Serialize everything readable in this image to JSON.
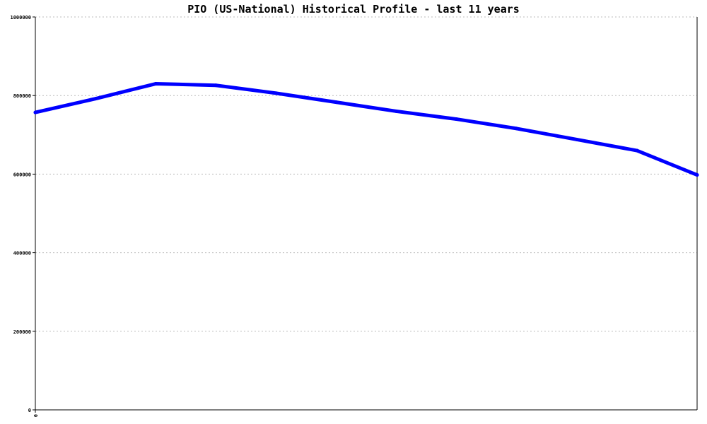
{
  "chart_data": {
    "type": "line",
    "title": "PIO (US-National) Historical Profile - last 11 years",
    "xlabel": "",
    "ylabel": "",
    "x_tick_labels": [
      "0"
    ],
    "x": [
      0,
      1,
      2,
      3,
      4,
      5,
      6,
      7,
      8,
      9,
      10,
      11
    ],
    "series": [
      {
        "values": [
          757000,
          792000,
          830000,
          826000,
          806000,
          783000,
          760000,
          740000,
          716000,
          688000,
          660000,
          598000
        ]
      }
    ],
    "xlim": [
      0,
      11
    ],
    "ylim": [
      0,
      1000000
    ],
    "y_ticks": [
      0,
      200000,
      400000,
      600000,
      800000,
      1000000
    ],
    "y_tick_labels": [
      "0",
      "200000",
      "400000",
      "600000",
      "800000",
      "1000000"
    ],
    "grid": true,
    "colors": {
      "line": "#0000ff",
      "grid": "#bbbbbb",
      "axis": "#000000"
    }
  }
}
